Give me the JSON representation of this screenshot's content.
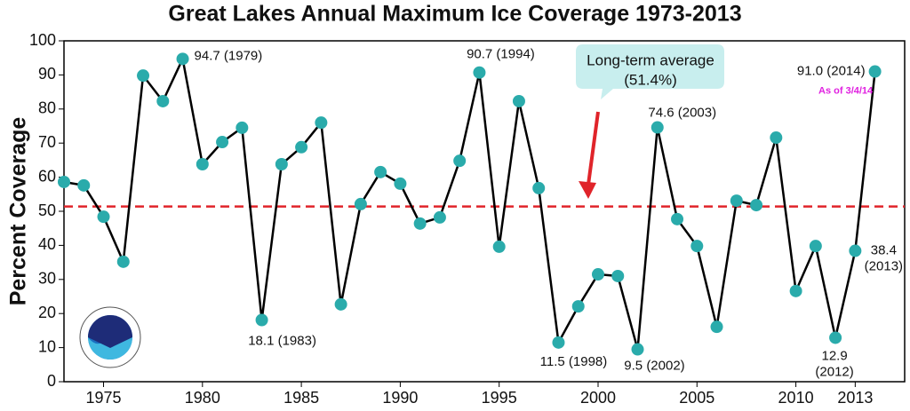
{
  "chart_data": {
    "type": "line",
    "title": "Great Lakes Annual Maximum Ice Coverage 1973-2013",
    "y_label": "Percent Coverage",
    "x": [
      1973,
      1974,
      1975,
      1976,
      1977,
      1978,
      1979,
      1980,
      1981,
      1982,
      1983,
      1984,
      1985,
      1986,
      1987,
      1988,
      1989,
      1990,
      1991,
      1992,
      1993,
      1994,
      1995,
      1996,
      1997,
      1998,
      1999,
      2000,
      2001,
      2002,
      2003,
      2004,
      2005,
      2006,
      2007,
      2008,
      2009,
      2010,
      2011,
      2012,
      2013,
      2014
    ],
    "series": [
      {
        "name": "Maximum Ice Coverage",
        "color": "#2aabab",
        "line_color": "#000000",
        "values": [
          58.6,
          57.6,
          48.4,
          35.2,
          89.8,
          82.3,
          94.7,
          63.8,
          70.3,
          74.5,
          18.1,
          63.8,
          68.8,
          76.0,
          22.7,
          52.1,
          61.5,
          58.1,
          46.4,
          48.2,
          64.8,
          90.7,
          39.6,
          82.3,
          56.8,
          11.5,
          22.1,
          31.5,
          31.0,
          9.5,
          74.6,
          47.7,
          39.8,
          16.1,
          53.1,
          51.8,
          71.6,
          26.6,
          39.8,
          12.9,
          38.4,
          91.0
        ],
        "value_labels": [
          null,
          null,
          null,
          null,
          null,
          null,
          "94.7 (1979)",
          null,
          null,
          null,
          "18.1 (1983)",
          null,
          null,
          null,
          null,
          null,
          null,
          null,
          null,
          null,
          null,
          "90.7 (1994)",
          null,
          null,
          null,
          "11.5 (1998)",
          null,
          null,
          null,
          "9.5 (2002)",
          "74.6 (2003)",
          null,
          null,
          null,
          null,
          null,
          null,
          null,
          null,
          "12.9 (2012)",
          "38.4 (2013)",
          "91.0 (2014)"
        ]
      }
    ],
    "xlim": [
      1973,
      2015.5
    ],
    "xticks": [
      1975,
      1980,
      1985,
      1990,
      1995,
      2000,
      2005,
      2010,
      2013
    ],
    "ylim": [
      0,
      100
    ],
    "yticks": [
      0,
      10,
      20,
      30,
      40,
      50,
      60,
      70,
      80,
      90,
      100
    ],
    "reference_line": {
      "value": 51.4,
      "name": "Long-term average",
      "label": "(51.4%)",
      "color": "#e0242a"
    },
    "note": "As of 3/4/14",
    "note_color": "#e020e0"
  }
}
